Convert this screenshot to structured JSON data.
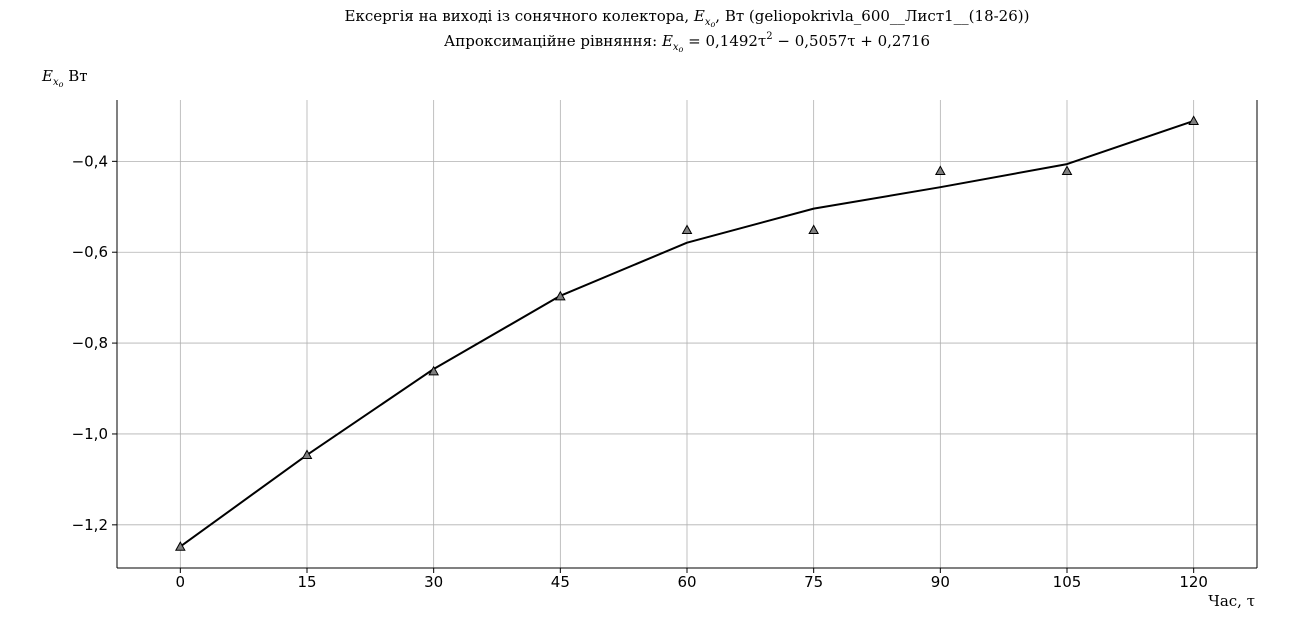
{
  "chart_data": {
    "type": "line",
    "title": "Ексергія на виході із сонячного колектора, E_xo, Вт (geliopokrivla_600__Лист1__(18-26))",
    "title_parts": {
      "prefix": "Ексергія на виході із сонячного колектора, ",
      "symbol": "E",
      "symbol_sub": "x",
      "symbol_subsub": "o",
      "suffix": ", Вт (geliopokrivla_600__Лист1__(18-26))"
    },
    "subtitle": "Апроксимаційне рівняння: E_xo = 0,1492τ² − 0,5057τ + 0,2716",
    "subtitle_parts": {
      "prefix": "Апроксимаційне рівняння: ",
      "symbol": "E",
      "symbol_sub": "x",
      "symbol_subsub": "o",
      "equation_a": " = 0,1492τ",
      "equation_sup": "2",
      "equation_b": " − 0,5057τ + 0,2716"
    },
    "ylabel": "E_xo Вт",
    "ylabel_parts": {
      "symbol": "E",
      "symbol_sub": "x",
      "symbol_subsub": "o",
      "unit": " Вт"
    },
    "xlabel": "Час, τ",
    "xlim": [
      -7.5,
      127.5
    ],
    "ylim": [
      -1.295,
      -0.265
    ],
    "x_ticks": [
      0,
      15,
      30,
      45,
      60,
      75,
      90,
      105,
      120
    ],
    "x_tick_labels": [
      "0",
      "15",
      "30",
      "45",
      "60",
      "75",
      "90",
      "105",
      "120"
    ],
    "y_ticks": [
      -1.2,
      -1.0,
      -0.8,
      -0.6,
      -0.4
    ],
    "y_tick_labels": [
      "−1,2",
      "−1,0",
      "−0,8",
      "−0,6",
      "−0,4"
    ],
    "grid": true,
    "series": [
      {
        "kind": "line",
        "color": "#000000",
        "x": [
          0,
          15,
          30,
          45,
          60,
          75,
          90,
          105,
          120
        ],
        "y": [
          -1.248,
          -1.046,
          -0.857,
          -0.696,
          -0.579,
          -0.504,
          -0.457,
          -0.406,
          -0.311
        ]
      },
      {
        "kind": "markers",
        "marker": "triangle",
        "color": "#7f7f7f",
        "x": [
          0,
          15,
          30,
          45,
          60,
          75,
          90,
          105,
          120
        ],
        "y": [
          -1.248,
          -1.046,
          -0.862,
          -0.697,
          -0.551,
          -0.551,
          -0.421,
          -0.421,
          -0.311
        ]
      }
    ]
  }
}
